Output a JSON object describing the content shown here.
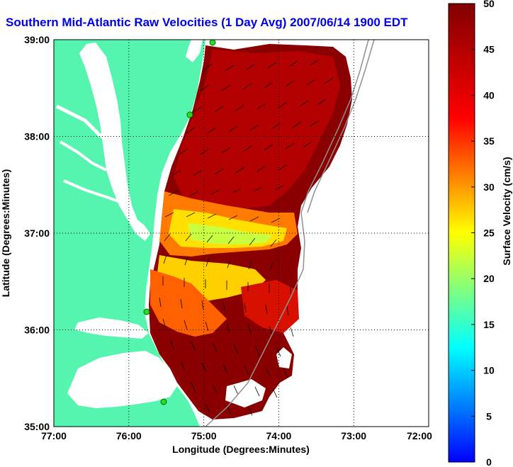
{
  "title": "Southern Mid-Atlantic Raw Velocities (1 Day Avg) 2007/06/14 1900 EDT",
  "map": {
    "xlabel": "Longitude (Degrees:Minutes)",
    "ylabel": "Latitude (Degrees:Minutes)",
    "x_ticks": [
      "77:00",
      "76:00",
      "75:00",
      "74:00",
      "73:00",
      "72:00"
    ],
    "y_ticks": [
      "39:00",
      "38:00",
      "37:00",
      "36:00",
      "35:00"
    ],
    "lon_range": [
      -77,
      -72
    ],
    "lat_range": [
      35,
      39
    ],
    "land_color": "#55f5b0",
    "water_color": "#ffffff",
    "grid": true
  },
  "colorbar": {
    "label": "Surface Velocity (cm/s)",
    "ticks": [
      "50",
      "45",
      "40",
      "35",
      "30",
      "25",
      "20",
      "15",
      "10",
      "5",
      "0"
    ],
    "range": [
      0,
      50
    ],
    "colormap": "jet"
  }
}
